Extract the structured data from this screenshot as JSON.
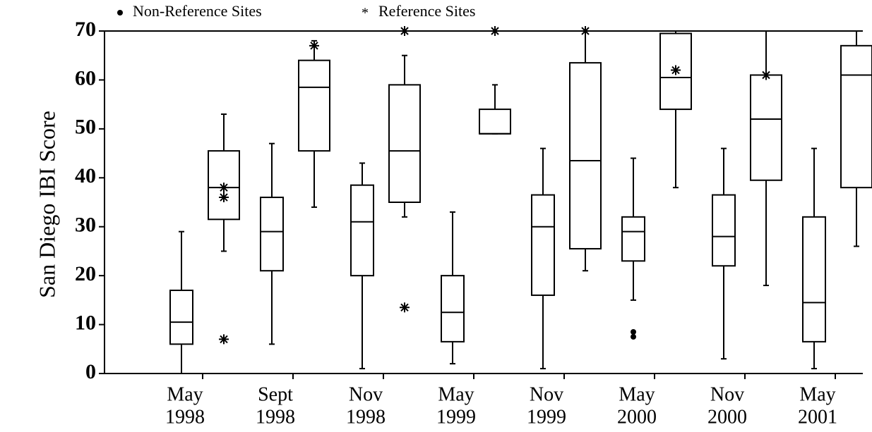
{
  "chart_data": {
    "type": "box",
    "y_label": "San Diego  IBI Score",
    "categories": [
      [
        "May",
        "1998"
      ],
      [
        "Sept",
        "1998"
      ],
      [
        "Nov",
        "1998"
      ],
      [
        "May",
        "1999"
      ],
      [
        "Nov",
        "1999"
      ],
      [
        "May",
        "2000"
      ],
      [
        "Nov",
        "2000"
      ],
      [
        "May",
        "2001"
      ]
    ],
    "ylim": [
      0,
      70
    ],
    "yticks": [
      0,
      10,
      20,
      30,
      40,
      50,
      60,
      70
    ],
    "series": [
      {
        "name": "Non-Reference Sites",
        "marker": "dot",
        "color": "#000000",
        "boxes": [
          {
            "min": 0,
            "q1": 6,
            "median": 10.5,
            "q3": 17,
            "max": 29,
            "outliers": []
          },
          {
            "min": 6,
            "q1": 21,
            "median": 29,
            "q3": 36,
            "max": 47,
            "outliers": []
          },
          {
            "min": 1,
            "q1": 20,
            "median": 31,
            "q3": 38.5,
            "max": 43,
            "outliers": []
          },
          {
            "min": 2,
            "q1": 6.5,
            "median": 12.5,
            "q3": 20,
            "max": 33,
            "outliers": []
          },
          {
            "min": 1,
            "q1": 16,
            "median": 30,
            "q3": 36.5,
            "max": 46,
            "outliers": []
          },
          {
            "min": 15,
            "q1": 23,
            "median": 29,
            "q3": 32,
            "max": 44,
            "outliers": [
              7.5,
              8.5
            ]
          },
          {
            "min": 3,
            "q1": 22,
            "median": 28,
            "q3": 36.5,
            "max": 46,
            "outliers": []
          },
          {
            "min": 1,
            "q1": 6.5,
            "median": 14.5,
            "q3": 32,
            "max": 46,
            "outliers": []
          }
        ]
      },
      {
        "name": "Reference Sites",
        "marker": "star",
        "color": "#000000",
        "boxes": [
          {
            "min": 25,
            "q1": 31.5,
            "median": 38,
            "q3": 45.5,
            "max": 53,
            "outliers": [
              36,
              38,
              7
            ]
          },
          {
            "min": 34,
            "q1": 45.5,
            "median": 58.5,
            "q3": 64,
            "max": 68,
            "outliers": [
              67
            ]
          },
          {
            "min": 32,
            "q1": 35,
            "median": 45.5,
            "q3": 59,
            "max": 65,
            "outliers": [
              13.5,
              70
            ]
          },
          {
            "min": 49,
            "q1": 49,
            "median": 49,
            "q3": 54,
            "max": 59,
            "outliers": [
              70
            ]
          },
          {
            "min": 21,
            "q1": 25.5,
            "median": 43.5,
            "q3": 63.5,
            "max": 70,
            "outliers": [
              70
            ]
          },
          {
            "min": 38,
            "q1": 54,
            "median": 60.5,
            "q3": 69.5,
            "max": 70,
            "outliers": [
              62
            ]
          },
          {
            "min": 18,
            "q1": 39.5,
            "median": 52,
            "q3": 61,
            "max": 70,
            "outliers": [
              61
            ]
          },
          {
            "min": 26,
            "q1": 38,
            "median": 61,
            "q3": 67,
            "max": 70,
            "outliers": []
          }
        ]
      }
    ]
  }
}
